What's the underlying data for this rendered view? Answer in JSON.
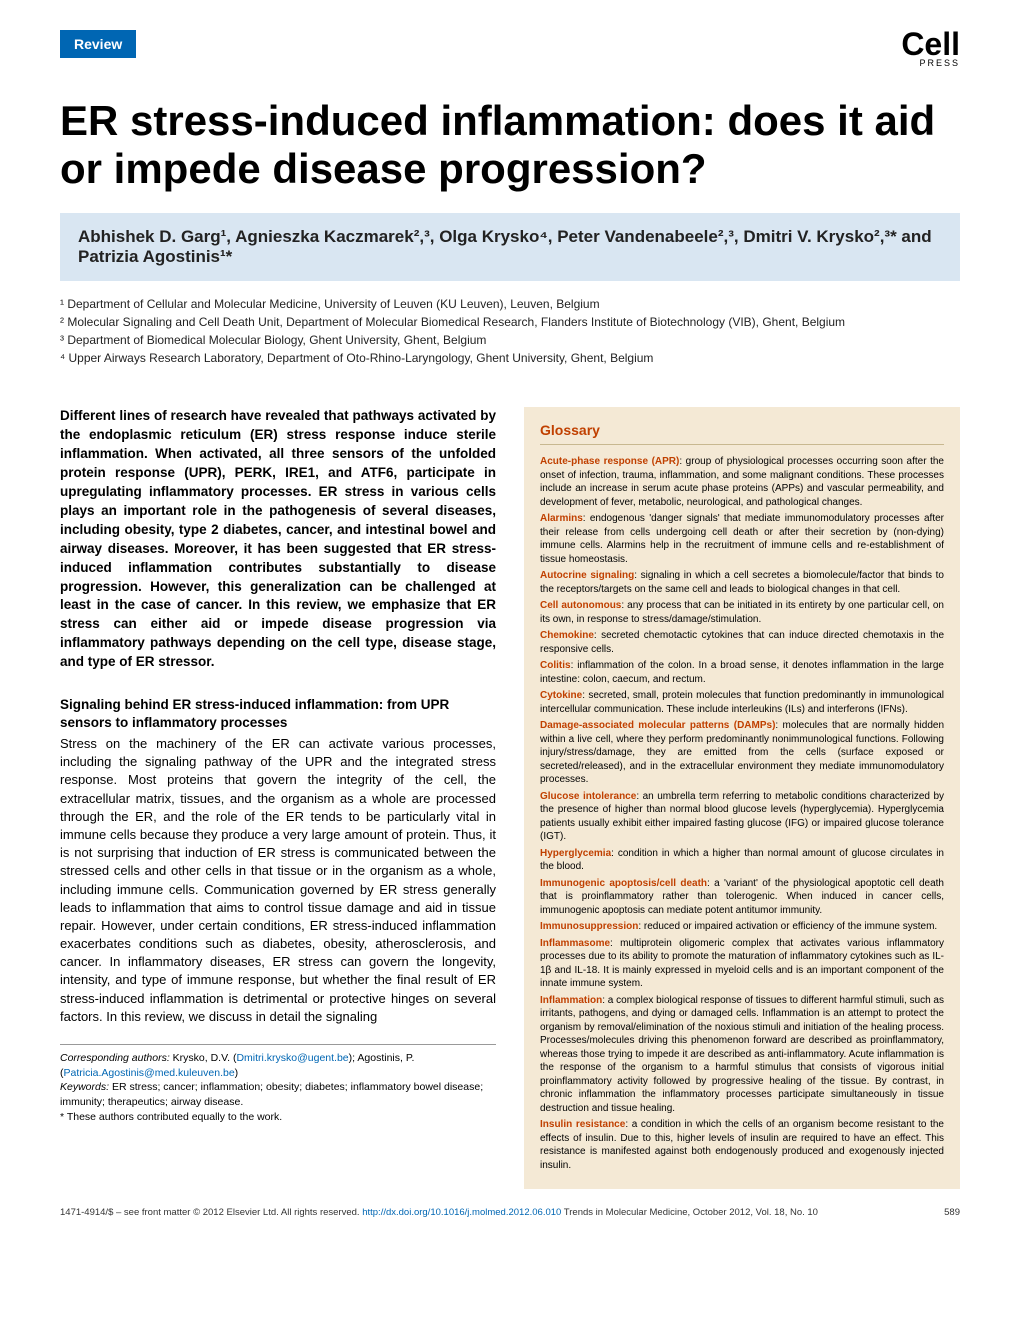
{
  "header": {
    "badge": "Review",
    "logo_main": "Cell",
    "logo_sub": "PRESS"
  },
  "title": "ER stress-induced inflammation: does it aid or impede disease progression?",
  "authors_html": "Abhishek D. Garg¹, Agnieszka Kaczmarek²,³, Olga Krysko⁴, Peter Vandenabeele²,³, Dmitri V. Krysko²,³* and Patrizia Agostinis¹*",
  "affiliations": [
    "¹ Department of Cellular and Molecular Medicine, University of Leuven (KU Leuven), Leuven, Belgium",
    "² Molecular Signaling and Cell Death Unit, Department of Molecular Biomedical Research, Flanders Institute of Biotechnology (VIB), Ghent, Belgium",
    "³ Department of Biomedical Molecular Biology, Ghent University, Ghent, Belgium",
    "⁴ Upper Airways Research Laboratory, Department of Oto-Rhino-Laryngology, Ghent University, Ghent, Belgium"
  ],
  "abstract": "Different lines of research have revealed that pathways activated by the endoplasmic reticulum (ER) stress response induce sterile inflammation. When activated, all three sensors of the unfolded protein response (UPR), PERK, IRE1, and ATF6, participate in upregulating inflammatory processes. ER stress in various cells plays an important role in the pathogenesis of several diseases, including obesity, type 2 diabetes, cancer, and intestinal bowel and airway diseases. Moreover, it has been suggested that ER stress-induced inflammation contributes substantially to disease progression. However, this generalization can be challenged at least in the case of cancer. In this review, we emphasize that ER stress can either aid or impede disease progression via inflammatory pathways depending on the cell type, disease stage, and type of ER stressor.",
  "section_heading": "Signaling behind ER stress-induced inflammation: from UPR sensors to inflammatory processes",
  "body": "Stress on the machinery of the ER can activate various processes, including the signaling pathway of the UPR and the integrated stress response. Most proteins that govern the integrity of the cell, the extracellular matrix, tissues, and the organism as a whole are processed through the ER, and the role of the ER tends to be particularly vital in immune cells because they produce a very large amount of protein. Thus, it is not surprising that induction of ER stress is communicated between the stressed cells and other cells in that tissue or in the organism as a whole, including immune cells. Communication governed by ER stress generally leads to inflammation that aims to control tissue damage and aid in tissue repair. However, under certain conditions, ER stress-induced inflammation exacerbates conditions such as diabetes, obesity, atherosclerosis, and cancer. In inflammatory diseases, ER stress can govern the longevity, intensity, and type of immune response, but whether the final result of ER stress-induced inflammation is detrimental or protective hinges on several factors. In this review, we discuss in detail the signaling",
  "correspondence": {
    "label_corr": "Corresponding authors:",
    "text_corr": " Krysko, D.V. ",
    "email1": "Dmitri.krysko@ugent.be",
    "between": "; Agostinis, P. (",
    "email2": "Patricia.Agostinis@med.kuleuven.be",
    "label_keywords": "Keywords:",
    "keywords_text": " ER stress; cancer; inflammation; obesity; diabetes; inflammatory bowel disease; immunity; therapeutics; airway disease.",
    "equal_note": "* These authors contributed equally to the work."
  },
  "glossary": {
    "title": "Glossary",
    "entries": [
      {
        "term": "Acute-phase response (APR)",
        "def": ": group of physiological processes occurring soon after the onset of infection, trauma, inflammation, and some malignant conditions. These processes include an increase in serum acute phase proteins (APPs) and vascular permeability, and development of fever, metabolic, neurological, and pathological changes."
      },
      {
        "term": "Alarmins",
        "def": ": endogenous 'danger signals' that mediate immunomodulatory processes after their release from cells undergoing cell death or after their secretion by (non-dying) immune cells. Alarmins help in the recruitment of immune cells and re-establishment of tissue homeostasis."
      },
      {
        "term": "Autocrine signaling",
        "def": ": signaling in which a cell secretes a biomolecule/factor that binds to the receptors/targets on the same cell and leads to biological changes in that cell."
      },
      {
        "term": "Cell autonomous",
        "def": ": any process that can be initiated in its entirety by one particular cell, on its own, in response to stress/damage/stimulation."
      },
      {
        "term": "Chemokine",
        "def": ": secreted chemotactic cytokines that can induce directed chemotaxis in the responsive cells."
      },
      {
        "term": "Colitis",
        "def": ": inflammation of the colon. In a broad sense, it denotes inflammation in the large intestine: colon, caecum, and rectum."
      },
      {
        "term": "Cytokine",
        "def": ": secreted, small, protein molecules that function predominantly in immunological intercellular communication. These include interleukins (ILs) and interferons (IFNs)."
      },
      {
        "term": "Damage-associated molecular patterns (DAMPs)",
        "def": ": molecules that are normally hidden within a live cell, where they perform predominantly nonimmunological functions. Following injury/stress/damage, they are emitted from the cells (surface exposed or secreted/released), and in the extracellular environment they mediate immunomodulatory processes."
      },
      {
        "term": "Glucose intolerance",
        "def": ": an umbrella term referring to metabolic conditions characterized by the presence of higher than normal blood glucose levels (hyperglycemia). Hyperglycemia patients usually exhibit either impaired fasting glucose (IFG) or impaired glucose tolerance (IGT)."
      },
      {
        "term": "Hyperglycemia",
        "def": ": condition in which a higher than normal amount of glucose circulates in the blood."
      },
      {
        "term": "Immunogenic apoptosis/cell death",
        "def": ": a 'variant' of the physiological apoptotic cell death that is proinflammatory rather than tolerogenic. When induced in cancer cells, immunogenic apoptosis can mediate potent antitumor immunity."
      },
      {
        "term": "Immunosuppression",
        "def": ": reduced or impaired activation or efficiency of the immune system."
      },
      {
        "term": "Inflammasome",
        "def": ": multiprotein oligomeric complex that activates various inflammatory processes due to its ability to promote the maturation of inflammatory cytokines such as IL-1β and IL-18. It is mainly expressed in myeloid cells and is an important component of the innate immune system."
      },
      {
        "term": "Inflammation",
        "def": ": a complex biological response of tissues to different harmful stimuli, such as irritants, pathogens, and dying or damaged cells. Inflammation is an attempt to protect the organism by removal/elimination of the noxious stimuli and initiation of the healing process. Processes/molecules driving this phenomenon forward are described as proinflammatory, whereas those trying to impede it are described as anti-inflammatory. Acute inflammation is the response of the organism to a harmful stimulus that consists of vigorous initial proinflammatory activity followed by progressive healing of the tissue. By contrast, in chronic inflammation the inflammatory processes participate simultaneously in tissue destruction and tissue healing."
      },
      {
        "term": "Insulin resistance",
        "def": ": a condition in which the cells of an organism become resistant to the effects of insulin. Due to this, higher levels of insulin are required to have an effect. This resistance is manifested against both endogenously produced and exogenously injected insulin."
      }
    ]
  },
  "footer": {
    "left_prefix": "1471-4914/$ – see front matter © 2012 Elsevier Ltd. All rights reserved. ",
    "doi": "http://dx.doi.org/10.1016/j.molmed.2012.06.010",
    "journal": " Trends in Molecular Medicine, October 2012, Vol. 18, No. 10",
    "page_num": "589"
  },
  "colors": {
    "badge_bg": "#0066b3",
    "authors_bg": "#d9e6f2",
    "glossary_bg": "#f4e9d5",
    "glossary_accent": "#c04000",
    "link": "#0066b3"
  }
}
